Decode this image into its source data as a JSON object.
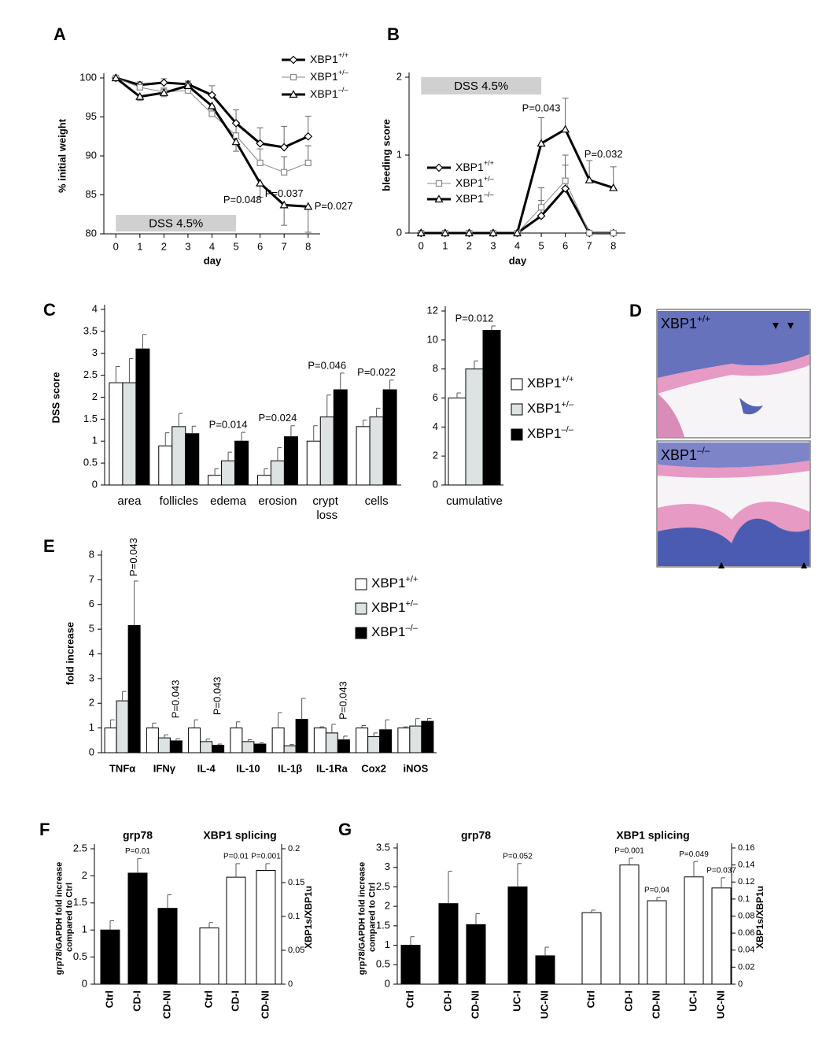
{
  "chart_data": [
    {
      "type": "line",
      "panel": "A",
      "xlabel": "day",
      "ylabel": "% initial weight",
      "x": [
        0,
        1,
        2,
        3,
        4,
        5,
        6,
        7,
        8
      ],
      "xlim": [
        -0.5,
        8.5
      ],
      "xticks": [
        0,
        1,
        2,
        3,
        4,
        5,
        6,
        7,
        8
      ],
      "ylim": [
        80,
        100
      ],
      "yticks": [
        80,
        85,
        90,
        95,
        100
      ],
      "legend": "upper right",
      "treatment": {
        "label": "DSS 4.5%",
        "start": 0,
        "end": 5
      },
      "series": [
        {
          "name": "XBP1+/+",
          "color": "#000000",
          "linewidth": 3,
          "marker": "diamond",
          "errorbar": "upper",
          "values": [
            100,
            99.1,
            99.4,
            99.2,
            97.8,
            94.2,
            91.6,
            91.1,
            92.5
          ],
          "errors": [
            0,
            0.4,
            0.5,
            0.4,
            1.2,
            1.7,
            2.0,
            2.7,
            2.6
          ]
        },
        {
          "name": "XBP1+/–",
          "color": "#888888",
          "linewidth": 1,
          "marker": "square",
          "errorbar": "upper",
          "values": [
            100,
            98.8,
            98.2,
            98.4,
            95.4,
            92.6,
            89.1,
            87.9,
            89.1
          ],
          "errors": [
            0,
            0.5,
            0.5,
            0.5,
            1.0,
            1.5,
            1.8,
            2.0,
            2.2
          ]
        },
        {
          "name": "XBP1–/–",
          "color": "#000000",
          "linewidth": 3,
          "marker": "triangle",
          "errorbar": "lower",
          "values": [
            100,
            97.6,
            98.1,
            99.0,
            96.4,
            91.8,
            86.5,
            83.7,
            83.5
          ],
          "errors": [
            0,
            0.5,
            0.5,
            0.6,
            0.8,
            1.2,
            1.8,
            2.6,
            3.3
          ]
        }
      ],
      "annotations": [
        {
          "text": "P=0.048",
          "x": 6
        },
        {
          "text": "P=0.037",
          "x": 7
        },
        {
          "text": "P=0.027",
          "x": 8
        }
      ]
    },
    {
      "type": "line",
      "panel": "B",
      "xlabel": "day",
      "ylabel": "bleeding score",
      "x": [
        0,
        1,
        2,
        3,
        4,
        5,
        6,
        7,
        8
      ],
      "xlim": [
        -0.5,
        8.5
      ],
      "xticks": [
        0,
        1,
        2,
        3,
        4,
        5,
        6,
        7,
        8
      ],
      "ylim": [
        0,
        2
      ],
      "yticks": [
        0,
        1,
        2
      ],
      "legend": "center left",
      "treatment": {
        "label": "DSS 4.5%",
        "start": 0,
        "end": 5
      },
      "series": [
        {
          "name": "XBP1+/+",
          "color": "#000000",
          "linewidth": 3,
          "marker": "diamond",
          "errorbar": "upper",
          "values": [
            0,
            0,
            0,
            0,
            0,
            0.22,
            0.57,
            0,
            0
          ],
          "errors": [
            0,
            0,
            0,
            0,
            0,
            0.2,
            0.3,
            0,
            0
          ]
        },
        {
          "name": "XBP1+/–",
          "color": "#888888",
          "linewidth": 1,
          "marker": "square",
          "errorbar": "upper",
          "values": [
            0,
            0,
            0,
            0,
            0,
            0.33,
            0.67,
            0,
            0
          ],
          "errors": [
            0,
            0,
            0,
            0,
            0,
            0.25,
            0.33,
            0,
            0
          ]
        },
        {
          "name": "XBP1–/–",
          "color": "#000000",
          "linewidth": 3,
          "marker": "triangle",
          "errorbar": "upper",
          "values": [
            0,
            0,
            0,
            0,
            0,
            1.15,
            1.33,
            0.68,
            0.58
          ],
          "errors": [
            0,
            0,
            0,
            0,
            0,
            0.33,
            0.4,
            0.25,
            0.27
          ]
        }
      ],
      "annotations": [
        {
          "text": "P=0.043",
          "x": 5
        },
        {
          "text": "P=0.032",
          "x": 7
        }
      ]
    },
    {
      "type": "bar",
      "panel": "C",
      "ylabel": "DSS score",
      "categories": [
        "area",
        "follicles",
        "edema",
        "erosion",
        "crypt loss",
        "cells"
      ],
      "ylim": [
        0,
        4
      ],
      "yticks": [
        0,
        0.5,
        1,
        1.5,
        2,
        2.5,
        3,
        3.5,
        4
      ],
      "series": [
        {
          "name": "XBP1+/+",
          "color": "#ffffff",
          "values": [
            2.33,
            0.89,
            0.22,
            0.22,
            1.0,
            1.33
          ],
          "errors": [
            0.37,
            0.3,
            0.15,
            0.15,
            0.35,
            0.15
          ]
        },
        {
          "name": "XBP1+/–",
          "color": "#dde3e3",
          "values": [
            2.33,
            1.33,
            0.55,
            0.55,
            1.55,
            1.55
          ],
          "errors": [
            0.55,
            0.3,
            0.2,
            0.3,
            0.5,
            0.2
          ]
        },
        {
          "name": "XBP1–/–",
          "color": "#000000",
          "values": [
            3.1,
            1.17,
            1.0,
            1.1,
            2.17,
            2.17
          ],
          "errors": [
            0.33,
            0.17,
            0.2,
            0.25,
            0.38,
            0.22
          ]
        }
      ],
      "annotations": [
        {
          "text": "P=0.014",
          "category": "edema"
        },
        {
          "text": "P=0.024",
          "category": "erosion"
        },
        {
          "text": "P=0.046",
          "category": "crypt loss"
        },
        {
          "text": "P=0.022",
          "category": "cells"
        }
      ]
    },
    {
      "type": "bar",
      "categories": [
        "cumulative"
      ],
      "ylim": [
        0,
        12
      ],
      "yticks": [
        0,
        2,
        4,
        6,
        8,
        10,
        12
      ],
      "legend": "right",
      "series": [
        {
          "name": "XBP1+/+",
          "color": "#ffffff",
          "values": [
            6.0
          ],
          "errors": [
            0.35
          ]
        },
        {
          "name": "XBP1+/–",
          "color": "#dde3e3",
          "values": [
            8.0
          ],
          "errors": [
            0.55
          ]
        },
        {
          "name": "XBP1–/–",
          "color": "#000000",
          "values": [
            10.67
          ],
          "errors": [
            0.3
          ]
        }
      ],
      "annotations": [
        {
          "text": "P=0.012",
          "category": "cumulative"
        }
      ]
    },
    {
      "type": "bar",
      "panel": "E",
      "ylabel": "fold increase",
      "categories": [
        "TNFα",
        "IFNγ",
        "IL-4",
        "IL-10",
        "IL-1β",
        "IL-1Ra",
        "Cox2",
        "iNOS"
      ],
      "ylim": [
        0,
        8
      ],
      "yticks": [
        0,
        1,
        2,
        3,
        4,
        5,
        6,
        7,
        8
      ],
      "legend": "upper right",
      "series": [
        {
          "name": "XBP1+/+",
          "color": "#ffffff",
          "values": [
            1,
            1,
            1,
            1,
            1,
            1,
            1,
            1
          ],
          "errors": [
            0.33,
            0.2,
            0.33,
            0.25,
            0.62,
            0.05,
            0.1,
            0.05
          ]
        },
        {
          "name": "XBP1+/–",
          "color": "#dde3e3",
          "values": [
            2.1,
            0.6,
            0.45,
            0.45,
            0.28,
            0.8,
            0.65,
            1.08
          ],
          "errors": [
            0.38,
            0.12,
            0.1,
            0.08,
            0.05,
            0.35,
            0.15,
            0.3
          ]
        },
        {
          "name": "XBP1–/–",
          "color": "#000000",
          "values": [
            5.15,
            0.48,
            0.3,
            0.35,
            1.35,
            0.52,
            0.93,
            1.27
          ],
          "errors": [
            1.8,
            0.08,
            0.05,
            0.05,
            0.85,
            0.15,
            0.4,
            0.12
          ]
        }
      ],
      "annotations": [
        {
          "text": "P=0.043",
          "category": "TNFα"
        },
        {
          "text": "P=0.043",
          "category": "IFNγ"
        },
        {
          "text": "P=0.043",
          "category": "IL-4"
        },
        {
          "text": "P=0.043",
          "category": "IL-1Ra"
        }
      ]
    },
    {
      "type": "bar",
      "panel": "F",
      "ylabel": "grp78/GAPDH fold increase compared to Ctrl",
      "y2label": "XBP1s/XBP1u",
      "categories": [
        "Ctrl",
        "CD-I",
        "CD-NI",
        "Ctrl",
        "CD-I",
        "CD-NI"
      ],
      "ylim": [
        0,
        2.5
      ],
      "yticks": [
        0,
        0.5,
        1,
        1.5,
        2,
        2.5
      ],
      "y2lim": [
        0,
        0.2
      ],
      "y2ticks": [
        0,
        0.05,
        0.1,
        0.15,
        0.2
      ],
      "series": [
        {
          "name": "grp78",
          "color": "#000000",
          "values": [
            1,
            2.05,
            1.4,
            null,
            null,
            null
          ],
          "errors": [
            0.17,
            0.27,
            0.25,
            null,
            null,
            null
          ]
        },
        {
          "name": "XBP1 splicing",
          "color": "#ffffff",
          "axis": "y2",
          "values": [
            null,
            null,
            null,
            0.083,
            0.158,
            0.168
          ],
          "errors": [
            null,
            null,
            null,
            0.008,
            0.02,
            0.01
          ]
        }
      ],
      "annotations": [
        {
          "text": "P=0.01",
          "category": "CD-I",
          "series": "grp78"
        },
        {
          "text": "P=0.01",
          "category": "CD-I",
          "series": "XBP1 splicing"
        },
        {
          "text": "P=0.001",
          "category": "CD-NI",
          "series": "XBP1 splicing"
        }
      ]
    },
    {
      "type": "bar",
      "panel": "G",
      "ylabel": "grp78/GAPDH fold increase compared to Ctrl",
      "y2label": "XBP1s/XBP1u",
      "categories": [
        "Ctrl",
        "CD-I",
        "CD-NI",
        "UC-I",
        "UC-NI",
        "Ctrl",
        "CD-I",
        "CD-NI",
        "UC-I",
        "UC-NI"
      ],
      "ylim": [
        0,
        3.5
      ],
      "yticks": [
        0,
        0.5,
        1,
        1.5,
        2,
        2.5,
        3,
        3.5
      ],
      "y2lim": [
        0,
        0.16
      ],
      "y2ticks": [
        0,
        0.02,
        0.04,
        0.06,
        0.08,
        0.1,
        0.12,
        0.14,
        0.16
      ],
      "series": [
        {
          "name": "grp78",
          "color": "#000000",
          "values": [
            1,
            2.07,
            1.53,
            2.5,
            0.73,
            null,
            null,
            null,
            null,
            null
          ],
          "errors": [
            0.22,
            0.83,
            0.28,
            0.6,
            0.22,
            null,
            null,
            null,
            null,
            null
          ]
        },
        {
          "name": "XBP1 splicing",
          "color": "#ffffff",
          "axis": "y2",
          "values": [
            null,
            null,
            null,
            null,
            null,
            0.084,
            0.14,
            0.098,
            0.126,
            0.113
          ],
          "errors": [
            null,
            null,
            null,
            null,
            null,
            0.003,
            0.008,
            0.004,
            0.018,
            0.012
          ]
        }
      ],
      "annotations": [
        {
          "text": "P=0.052",
          "category": "UC-I",
          "series": "grp78"
        },
        {
          "text": "P=0.001",
          "category": "CD-I",
          "series": "XBP1 splicing"
        },
        {
          "text": "P=0.04",
          "category": "CD-NI",
          "series": "XBP1 splicing"
        },
        {
          "text": "P=0.049",
          "category": "UC-I",
          "series": "XBP1 splicing"
        },
        {
          "text": "P=0.037",
          "category": "UC-NI",
          "series": "XBP1 splicing"
        }
      ]
    }
  ],
  "image_panel": {
    "panel": "D",
    "labels": [
      "XBP1+/+",
      "XBP1–/–"
    ]
  }
}
